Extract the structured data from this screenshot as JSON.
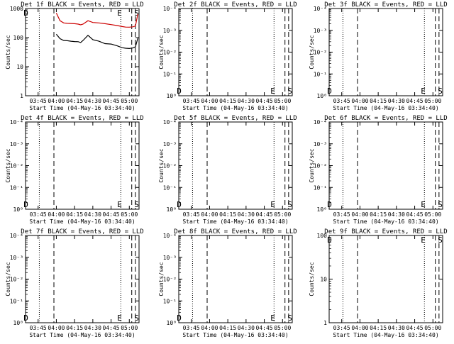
{
  "chart_data": [
    {
      "title": "Det 1f BLACK = Events, RED = LLD",
      "type": "line",
      "ylabel": "Counts/sec",
      "xlabel": "Start Time (04-May-16 03:34:40)",
      "x_ticks": [
        "03:45",
        "04:00",
        "04:15",
        "04:30",
        "04:45",
        "05:00"
      ],
      "y_scale": "log",
      "y_ticks": [
        "1",
        "10",
        "100",
        "1000"
      ],
      "ylim": [
        1,
        1000
      ],
      "markers": [
        {
          "label": "D",
          "x": "03:35"
        },
        {
          "label": "E",
          "x": "04:52"
        },
        {
          "label": "S",
          "x": "05:06"
        }
      ],
      "series": [
        {
          "color": "#000000",
          "x": [
            "04:00",
            "04:03",
            "04:06",
            "04:09",
            "04:12",
            "04:15",
            "04:18",
            "04:20",
            "04:22",
            "04:26",
            "04:30",
            "04:35",
            "04:40",
            "04:45",
            "04:50",
            "04:54",
            "04:57",
            "05:00",
            "05:03",
            "05:05",
            "05:07"
          ],
          "y": [
            130,
            92,
            80,
            78,
            75,
            73,
            72,
            68,
            80,
            120,
            85,
            75,
            62,
            60,
            52,
            45,
            43,
            42,
            44,
            48,
            95
          ]
        },
        {
          "color": "#cc0000",
          "x": [
            "04:00",
            "04:03",
            "04:06",
            "04:09",
            "04:12",
            "04:15",
            "04:18",
            "04:20",
            "04:22",
            "04:26",
            "04:30",
            "04:35",
            "04:40",
            "04:45",
            "04:50",
            "04:54",
            "04:57",
            "05:00",
            "05:03",
            "05:05",
            "05:07"
          ],
          "y": [
            700,
            380,
            320,
            310,
            305,
            300,
            290,
            275,
            290,
            380,
            330,
            320,
            300,
            280,
            260,
            240,
            230,
            228,
            235,
            250,
            650
          ]
        }
      ]
    },
    {
      "title": "Det 2f BLACK = Events, RED = LLD",
      "type": "line",
      "ylabel": "Counts/sec",
      "xlabel": "Start Time (04-May-16 03:34:40)",
      "x_ticks": [
        "03:45",
        "04:00",
        "04:15",
        "04:30",
        "04:45",
        "05:00"
      ],
      "y_scale": "log",
      "y_ticks": [
        "10⁰",
        "10⁻¹",
        "10⁻²",
        "10⁻³",
        "10⁻⁴"
      ],
      "markers": [
        {
          "label": "D",
          "x": "03:35"
        },
        {
          "label": "E",
          "x": "04:52"
        },
        {
          "label": "S",
          "x": "05:06"
        }
      ],
      "series": []
    },
    {
      "title": "Det 3f BLACK = Events, RED = LLD",
      "type": "line",
      "ylabel": "Counts/sec",
      "xlabel": "Start Time (04-May-16 03:34:40)",
      "x_ticks": [
        "03:45",
        "04:00",
        "04:15",
        "04:30",
        "04:45",
        "05:00"
      ],
      "y_scale": "log",
      "y_ticks": [
        "10⁰",
        "10⁻¹",
        "10⁻²",
        "10⁻³",
        "10⁻⁴"
      ],
      "markers": [
        {
          "label": "D",
          "x": "03:35"
        },
        {
          "label": "E",
          "x": "04:52"
        },
        {
          "label": "S",
          "x": "05:06"
        }
      ],
      "series": []
    },
    {
      "title": "Det 4f BLACK = Events, RED = LLD",
      "type": "line",
      "ylabel": "Counts/sec",
      "xlabel": "Start Time (04-May-16 03:34:40)",
      "x_ticks": [
        "03:45",
        "04:00",
        "04:15",
        "04:30",
        "04:45",
        "05:00"
      ],
      "y_scale": "log",
      "y_ticks": [
        "10⁰",
        "10⁻¹",
        "10⁻²",
        "10⁻³",
        "10⁻⁴"
      ],
      "markers": [
        {
          "label": "D",
          "x": "03:35"
        },
        {
          "label": "E",
          "x": "04:52"
        },
        {
          "label": "S",
          "x": "05:06"
        }
      ],
      "series": []
    },
    {
      "title": "Det 5f BLACK = Events, RED = LLD",
      "type": "line",
      "ylabel": "Counts/sec",
      "xlabel": "Start Time (04-May-16 03:34:40)",
      "x_ticks": [
        "03:45",
        "04:00",
        "04:15",
        "04:30",
        "04:45",
        "05:00"
      ],
      "y_scale": "log",
      "y_ticks": [
        "10⁰",
        "10⁻¹",
        "10⁻²",
        "10⁻³",
        "10⁻⁴"
      ],
      "markers": [
        {
          "label": "D",
          "x": "03:35"
        },
        {
          "label": "E",
          "x": "04:52"
        },
        {
          "label": "S",
          "x": "05:06"
        }
      ],
      "series": []
    },
    {
      "title": "Det 6f BLACK = Events, RED = LLD",
      "type": "line",
      "ylabel": "Counts/sec",
      "xlabel": "Start Time (04-May-16 03:34:40)",
      "x_ticks": [
        "03:45",
        "04:00",
        "04:15",
        "04:30",
        "04:45",
        "05:00"
      ],
      "y_scale": "log",
      "y_ticks": [
        "10⁰",
        "10⁻¹",
        "10⁻²",
        "10⁻³",
        "10⁻⁴"
      ],
      "markers": [
        {
          "label": "D",
          "x": "03:35"
        },
        {
          "label": "E",
          "x": "04:52"
        },
        {
          "label": "S",
          "x": "05:06"
        }
      ],
      "series": []
    },
    {
      "title": "Det 7f BLACK = Events, RED = LLD",
      "type": "line",
      "ylabel": "Counts/sec",
      "xlabel": "Start Time (04-May-16 03:34:40)",
      "x_ticks": [
        "03:45",
        "04:00",
        "04:15",
        "04:30",
        "04:45",
        "05:00"
      ],
      "y_scale": "log",
      "y_ticks": [
        "10⁰",
        "10⁻¹",
        "10⁻²",
        "10⁻³",
        "10⁻⁴"
      ],
      "markers": [
        {
          "label": "D",
          "x": "03:35"
        },
        {
          "label": "E",
          "x": "04:52"
        },
        {
          "label": "S",
          "x": "05:06"
        }
      ],
      "series": []
    },
    {
      "title": "Det 8f BLACK = Events, RED = LLD",
      "type": "line",
      "ylabel": "Counts/sec",
      "xlabel": "Start Time (04-May-16 03:34:40)",
      "x_ticks": [
        "03:45",
        "04:00",
        "04:15",
        "04:30",
        "04:45",
        "05:00"
      ],
      "y_scale": "log",
      "y_ticks": [
        "10⁰",
        "10⁻¹",
        "10⁻²",
        "10⁻³",
        "10⁻⁴"
      ],
      "markers": [
        {
          "label": "D",
          "x": "03:35"
        },
        {
          "label": "E",
          "x": "04:52"
        },
        {
          "label": "S",
          "x": "05:06"
        }
      ],
      "series": []
    },
    {
      "title": "Det 9f BLACK = Events, RED = LLD",
      "type": "line",
      "ylabel": "Counts/sec",
      "xlabel": "Start Time (04-May-16 03:34:40)",
      "x_ticks": [
        "03:45",
        "04:00",
        "04:15",
        "04:30",
        "04:45",
        "05:00"
      ],
      "y_scale": "log",
      "y_ticks": [
        "1",
        "10",
        "100"
      ],
      "ylim": [
        1,
        100
      ],
      "markers": [
        {
          "label": "D",
          "x": "03:35"
        },
        {
          "label": "E",
          "x": "04:52"
        },
        {
          "label": "S",
          "x": "05:06"
        }
      ],
      "series": []
    }
  ]
}
